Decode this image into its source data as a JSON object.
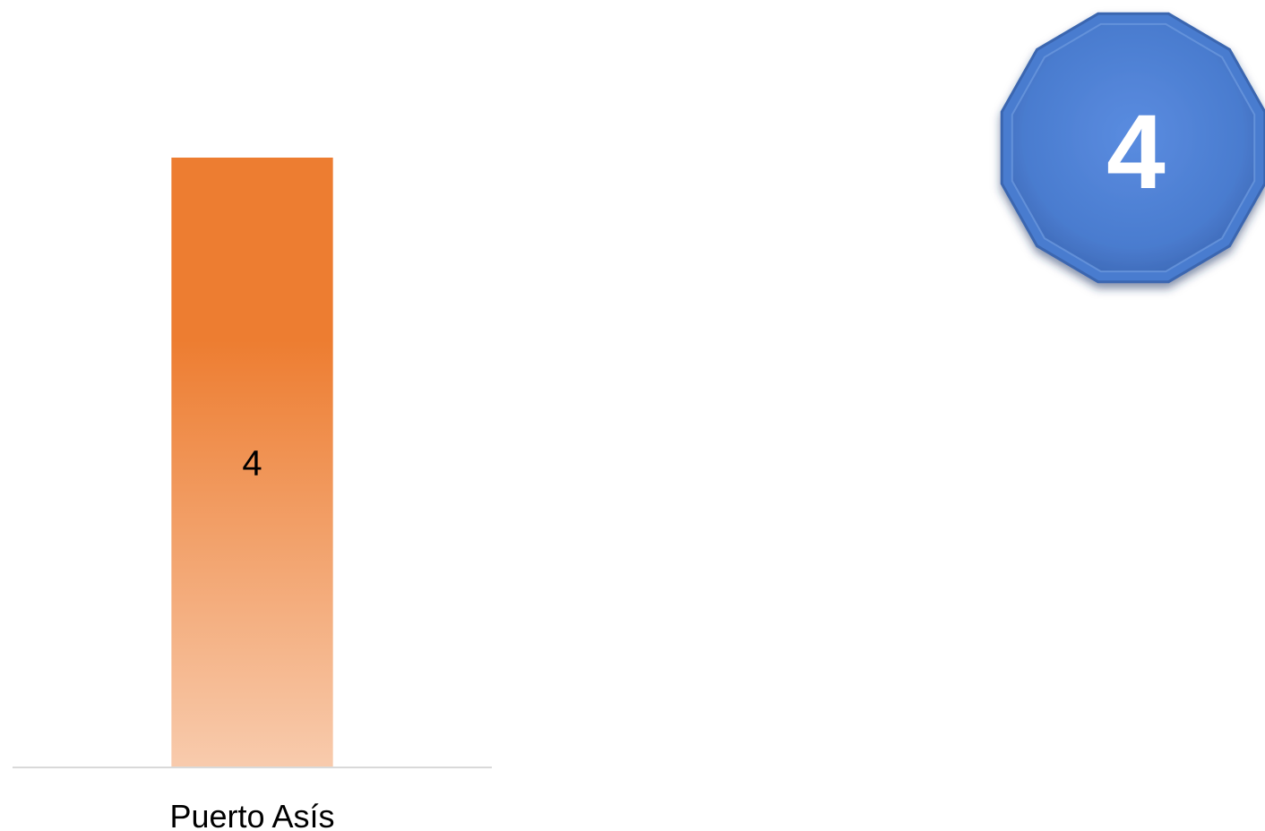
{
  "chart_data": {
    "type": "bar",
    "categories": [
      "Puerto Asís"
    ],
    "values": [
      4
    ],
    "data_labels": [
      "4"
    ],
    "ylim": [
      0,
      4
    ],
    "grid": false,
    "legend": "none"
  },
  "badge": {
    "value": "4",
    "shape": "dodecagon",
    "color": "#4a7ccf"
  },
  "colors": {
    "bar_top": "#ed7d31",
    "bar_bottom": "#f8cbad",
    "baseline": "#d9d9d9"
  }
}
